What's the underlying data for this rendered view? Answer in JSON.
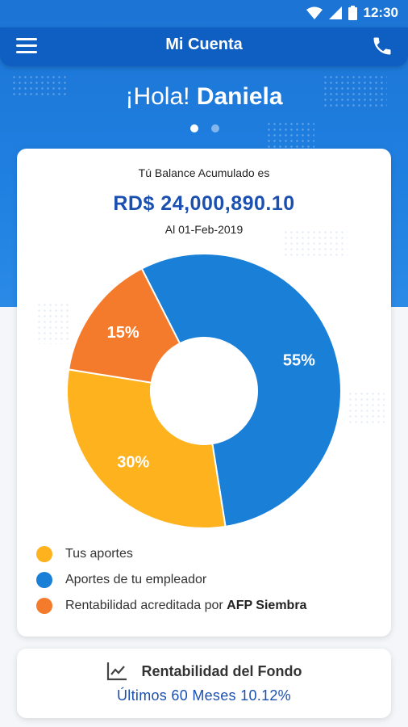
{
  "status_bar": {
    "time": "12:30"
  },
  "app_bar": {
    "title": "Mi Cuenta"
  },
  "greeting": {
    "salutation": "¡Hola!",
    "name": "Daniela"
  },
  "pager": {
    "count": 2,
    "active": 0
  },
  "balance_card": {
    "subtitle": "Tú Balance Acumulado es",
    "amount": "RD$ 24,000,890.10",
    "date": "Al 01-Feb-2019"
  },
  "chart_data": {
    "type": "pie",
    "donut": true,
    "title": "",
    "slices": [
      {
        "name": "Aportes de tu empleador",
        "value": 55,
        "label": "55%",
        "color": "#1a7fd6"
      },
      {
        "name": "Tus aportes",
        "value": 30,
        "label": "30%",
        "color": "#fdb21e"
      },
      {
        "name": "Rentabilidad acreditada por AFP Siembra",
        "value": 15,
        "label": "15%",
        "color": "#f57b2c"
      }
    ]
  },
  "legend": {
    "items": [
      {
        "label": "Tus aportes",
        "color": "#fdb21e"
      },
      {
        "label": "Aportes de tu empleador",
        "color": "#1a7fd6"
      },
      {
        "label": "Rentabilidad acreditada por ",
        "bold": "AFP Siembra",
        "color": "#f57b2c"
      }
    ]
  },
  "fund_card": {
    "icon": "line-chart-icon",
    "title": "Rentabilidad del Fondo",
    "detail": "Últimos 60 Meses 10.12%"
  }
}
